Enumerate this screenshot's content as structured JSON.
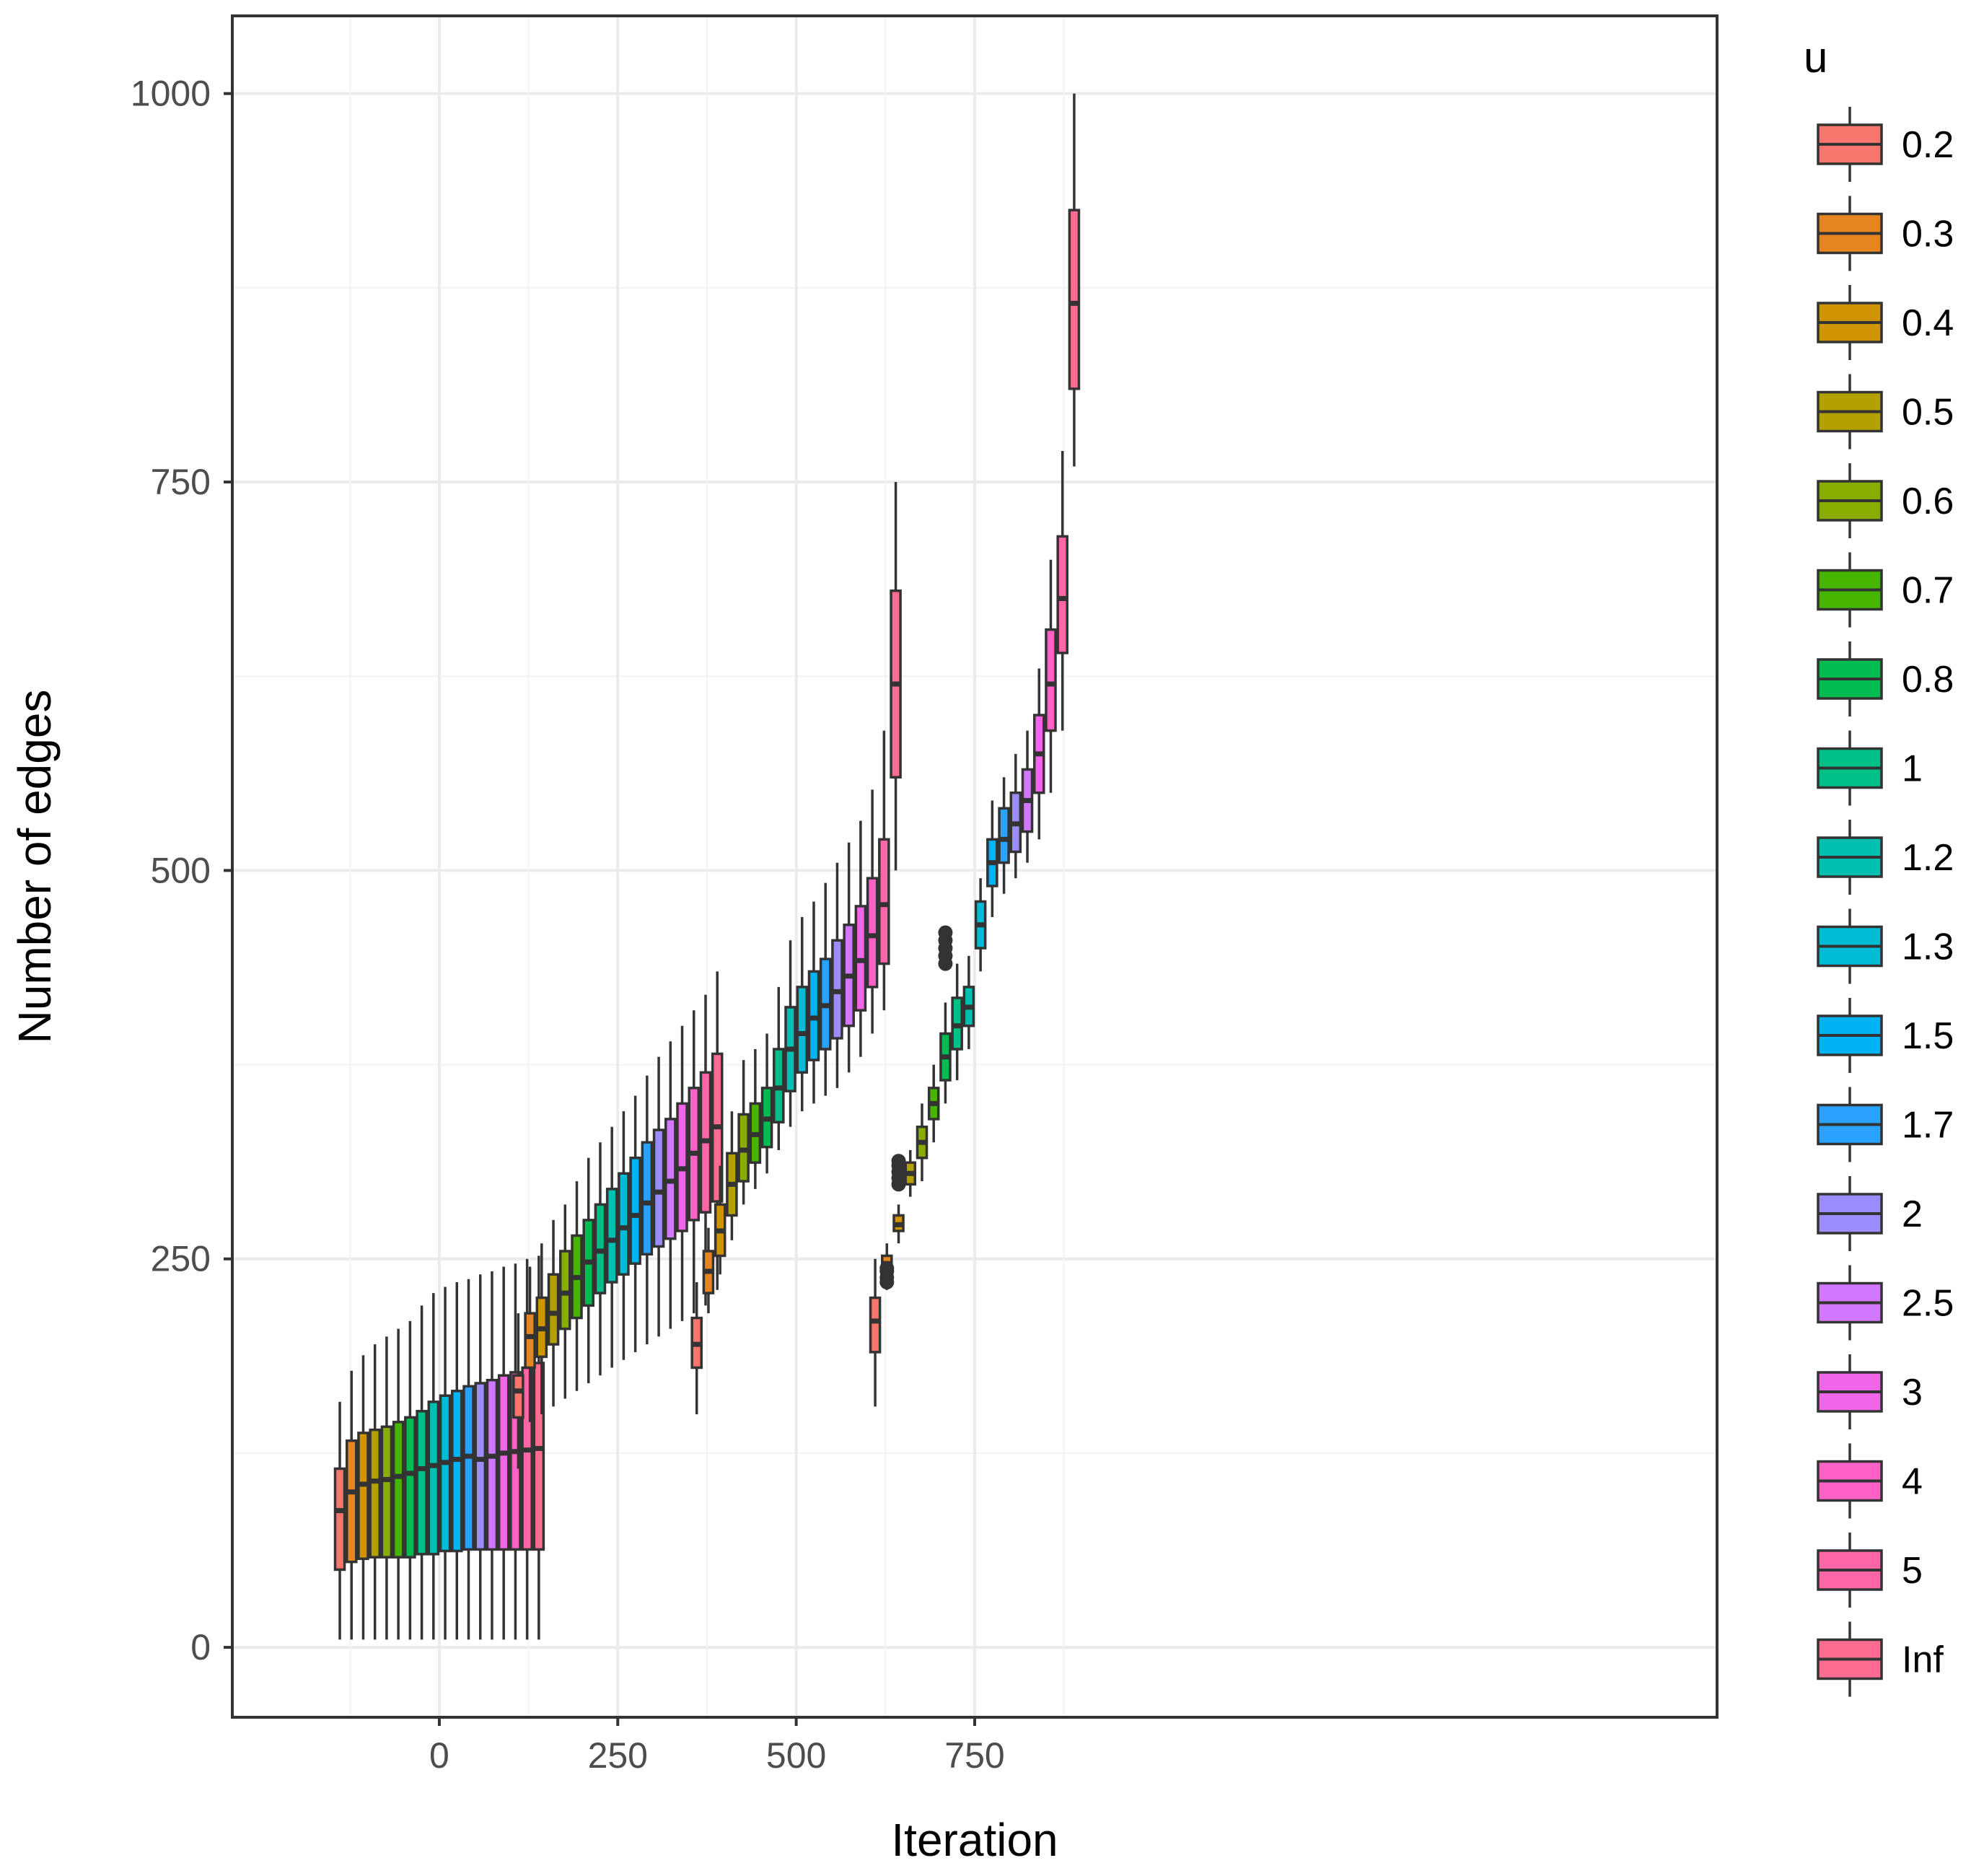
{
  "chart_data": {
    "type": "boxplot",
    "xlabel": "Iteration",
    "ylabel": "Number of edges",
    "xlim": [
      -290,
      1790
    ],
    "ylim": [
      -45,
      1050
    ],
    "x_ticks": [
      0,
      250,
      500,
      750
    ],
    "y_ticks": [
      0,
      250,
      500,
      750,
      1000
    ],
    "grid": true,
    "legend": {
      "title": "u",
      "position": "right",
      "entries": [
        "0.2",
        "0.3",
        "0.4",
        "0.5",
        "0.6",
        "0.7",
        "0.8",
        "1",
        "1.2",
        "1.3",
        "1.5",
        "1.7",
        "2",
        "2.5",
        "3",
        "4",
        "5",
        "Inf"
      ],
      "colors": [
        "#F8766D",
        "#E7851E",
        "#D09400",
        "#B2A100",
        "#89AC00",
        "#45B500",
        "#00BC51",
        "#00C087",
        "#00C0B2",
        "#00BCD6",
        "#00B3F2",
        "#29A3FF",
        "#9C8DFF",
        "#D277FF",
        "#F166E8",
        "#FF61C7",
        "#FF66A8",
        "#FF6C91"
      ]
    },
    "groups": [
      {
        "iteration": 0,
        "boxes": [
          {
            "u": "0.2",
            "whisker_low": 5,
            "q1": 50,
            "median": 88,
            "q3": 115,
            "whisker_high": 158
          },
          {
            "u": "0.3",
            "whisker_low": 5,
            "q1": 55,
            "median": 100,
            "q3": 133,
            "whisker_high": 178
          },
          {
            "u": "0.4",
            "whisker_low": 5,
            "q1": 57,
            "median": 105,
            "q3": 138,
            "whisker_high": 188
          },
          {
            "u": "0.5",
            "whisker_low": 5,
            "q1": 58,
            "median": 107,
            "q3": 140,
            "whisker_high": 195
          },
          {
            "u": "0.6",
            "whisker_low": 5,
            "q1": 58,
            "median": 108,
            "q3": 142,
            "whisker_high": 200
          },
          {
            "u": "0.7",
            "whisker_low": 5,
            "q1": 58,
            "median": 110,
            "q3": 145,
            "whisker_high": 205
          },
          {
            "u": "0.8",
            "whisker_low": 5,
            "q1": 58,
            "median": 112,
            "q3": 148,
            "whisker_high": 210
          },
          {
            "u": "1",
            "whisker_low": 5,
            "q1": 60,
            "median": 115,
            "q3": 152,
            "whisker_high": 220
          },
          {
            "u": "1.2",
            "whisker_low": 5,
            "q1": 60,
            "median": 117,
            "q3": 158,
            "whisker_high": 228
          },
          {
            "u": "1.3",
            "whisker_low": 5,
            "q1": 62,
            "median": 119,
            "q3": 162,
            "whisker_high": 232
          },
          {
            "u": "1.5",
            "whisker_low": 5,
            "q1": 62,
            "median": 121,
            "q3": 165,
            "whisker_high": 235
          },
          {
            "u": "1.7",
            "whisker_low": 5,
            "q1": 63,
            "median": 123,
            "q3": 168,
            "whisker_high": 237
          },
          {
            "u": "2",
            "whisker_low": 5,
            "q1": 63,
            "median": 121,
            "q3": 170,
            "whisker_high": 240
          },
          {
            "u": "2.5",
            "whisker_low": 5,
            "q1": 63,
            "median": 123,
            "q3": 172,
            "whisker_high": 242
          },
          {
            "u": "3",
            "whisker_low": 5,
            "q1": 63,
            "median": 125,
            "q3": 175,
            "whisker_high": 245
          },
          {
            "u": "4",
            "whisker_low": 5,
            "q1": 63,
            "median": 126,
            "q3": 177,
            "whisker_high": 247
          },
          {
            "u": "5",
            "whisker_low": 5,
            "q1": 63,
            "median": 127,
            "q3": 180,
            "whisker_high": 250
          },
          {
            "u": "Inf",
            "whisker_low": 5,
            "q1": 63,
            "median": 128,
            "q3": 183,
            "whisker_high": 252
          }
        ]
      },
      {
        "iteration": 250,
        "boxes": [
          {
            "u": "0.2",
            "whisker_low": 115,
            "q1": 148,
            "median": 165,
            "q3": 175,
            "whisker_high": 215
          },
          {
            "u": "0.3",
            "whisker_low": 145,
            "q1": 180,
            "median": 200,
            "q3": 215,
            "whisker_high": 245
          },
          {
            "u": "0.4",
            "whisker_low": 150,
            "q1": 187,
            "median": 205,
            "q3": 225,
            "whisker_high": 260
          },
          {
            "u": "0.5",
            "whisker_low": 155,
            "q1": 195,
            "median": 215,
            "q3": 240,
            "whisker_high": 275
          },
          {
            "u": "0.6",
            "whisker_low": 160,
            "q1": 205,
            "median": 228,
            "q3": 255,
            "whisker_high": 285
          },
          {
            "u": "0.7",
            "whisker_low": 165,
            "q1": 212,
            "median": 238,
            "q3": 265,
            "whisker_high": 300
          },
          {
            "u": "0.8",
            "whisker_low": 170,
            "q1": 220,
            "median": 248,
            "q3": 275,
            "whisker_high": 315
          },
          {
            "u": "1",
            "whisker_low": 175,
            "q1": 228,
            "median": 255,
            "q3": 285,
            "whisker_high": 325
          },
          {
            "u": "1.2",
            "whisker_low": 180,
            "q1": 235,
            "median": 262,
            "q3": 295,
            "whisker_high": 335
          },
          {
            "u": "1.3",
            "whisker_low": 185,
            "q1": 240,
            "median": 270,
            "q3": 305,
            "whisker_high": 345
          },
          {
            "u": "1.5",
            "whisker_low": 190,
            "q1": 247,
            "median": 278,
            "q3": 315,
            "whisker_high": 355
          },
          {
            "u": "1.7",
            "whisker_low": 195,
            "q1": 253,
            "median": 286,
            "q3": 325,
            "whisker_high": 368
          },
          {
            "u": "2",
            "whisker_low": 200,
            "q1": 258,
            "median": 293,
            "q3": 333,
            "whisker_high": 380
          },
          {
            "u": "2.5",
            "whisker_low": 205,
            "q1": 263,
            "median": 300,
            "q3": 340,
            "whisker_high": 390
          },
          {
            "u": "3",
            "whisker_low": 210,
            "q1": 268,
            "median": 308,
            "q3": 350,
            "whisker_high": 400
          },
          {
            "u": "4",
            "whisker_low": 215,
            "q1": 275,
            "median": 318,
            "q3": 360,
            "whisker_high": 410
          },
          {
            "u": "5",
            "whisker_low": 220,
            "q1": 280,
            "median": 326,
            "q3": 370,
            "whisker_high": 420
          },
          {
            "u": "Inf",
            "whisker_low": 230,
            "q1": 287,
            "median": 335,
            "q3": 382,
            "whisker_high": 435
          }
        ]
      },
      {
        "iteration": 500,
        "boxes": [
          {
            "u": "0.2",
            "whisker_low": 150,
            "q1": 180,
            "median": 195,
            "q3": 212,
            "whisker_high": 235
          },
          {
            "u": "0.3",
            "whisker_low": 215,
            "q1": 228,
            "median": 242,
            "q3": 255,
            "whisker_high": 270
          },
          {
            "u": "0.4",
            "whisker_low": 240,
            "q1": 252,
            "median": 268,
            "q3": 285,
            "whisker_high": 310
          },
          {
            "u": "0.5",
            "whisker_low": 262,
            "q1": 278,
            "median": 298,
            "q3": 318,
            "whisker_high": 345
          },
          {
            "u": "0.6",
            "whisker_low": 285,
            "q1": 300,
            "median": 320,
            "q3": 343,
            "whisker_high": 378
          },
          {
            "u": "0.7",
            "whisker_low": 295,
            "q1": 312,
            "median": 330,
            "q3": 350,
            "whisker_high": 385
          },
          {
            "u": "0.8",
            "whisker_low": 305,
            "q1": 322,
            "median": 340,
            "q3": 360,
            "whisker_high": 395
          },
          {
            "u": "1",
            "whisker_low": 320,
            "q1": 338,
            "median": 360,
            "q3": 385,
            "whisker_high": 425
          },
          {
            "u": "1.2",
            "whisker_low": 335,
            "q1": 358,
            "median": 385,
            "q3": 412,
            "whisker_high": 455
          },
          {
            "u": "1.3",
            "whisker_low": 345,
            "q1": 370,
            "median": 395,
            "q3": 425,
            "whisker_high": 470
          },
          {
            "u": "1.5",
            "whisker_low": 350,
            "q1": 378,
            "median": 405,
            "q3": 435,
            "whisker_high": 480
          },
          {
            "u": "1.7",
            "whisker_low": 355,
            "q1": 385,
            "median": 413,
            "q3": 443,
            "whisker_high": 492
          },
          {
            "u": "2",
            "whisker_low": 360,
            "q1": 392,
            "median": 422,
            "q3": 455,
            "whisker_high": 505
          },
          {
            "u": "2.5",
            "whisker_low": 370,
            "q1": 400,
            "median": 432,
            "q3": 465,
            "whisker_high": 518
          },
          {
            "u": "3",
            "whisker_low": 380,
            "q1": 410,
            "median": 442,
            "q3": 477,
            "whisker_high": 532
          },
          {
            "u": "4",
            "whisker_low": 395,
            "q1": 425,
            "median": 458,
            "q3": 495,
            "whisker_high": 552
          },
          {
            "u": "5",
            "whisker_low": 410,
            "q1": 440,
            "median": 478,
            "q3": 520,
            "whisker_high": 590
          },
          {
            "u": "Inf",
            "whisker_low": 500,
            "q1": 560,
            "median": 620,
            "q3": 680,
            "whisker_high": 750
          }
        ]
      },
      {
        "iteration": 750,
        "boxes": [
          {
            "u": "0.2",
            "whisker_low": 155,
            "q1": 190,
            "median": 210,
            "q3": 225,
            "whisker_high": 250
          },
          {
            "u": "0.3",
            "whisker_low": 230,
            "q1": 240,
            "median": 247,
            "q3": 252,
            "whisker_high": 260
          },
          {
            "u": "0.4",
            "whisker_low": 260,
            "q1": 268,
            "median": 272,
            "q3": 278,
            "whisker_high": 285
          },
          {
            "u": "0.5",
            "whisker_low": 290,
            "q1": 298,
            "median": 305,
            "q3": 312,
            "whisker_high": 320
          },
          {
            "u": "0.6",
            "whisker_low": 300,
            "q1": 315,
            "median": 325,
            "q3": 335,
            "whisker_high": 350
          },
          {
            "u": "0.7",
            "whisker_low": 325,
            "q1": 340,
            "median": 350,
            "q3": 360,
            "whisker_high": 375
          },
          {
            "u": "0.8",
            "whisker_low": 350,
            "q1": 365,
            "median": 380,
            "q3": 395,
            "whisker_high": 415
          },
          {
            "u": "1",
            "whisker_low": 365,
            "q1": 385,
            "median": 400,
            "q3": 418,
            "whisker_high": 440
          },
          {
            "u": "1.2",
            "whisker_low": 385,
            "q1": 400,
            "median": 412,
            "q3": 425,
            "whisker_high": 445
          },
          {
            "u": "1.3",
            "whisker_low": 435,
            "q1": 450,
            "median": 465,
            "q3": 480,
            "whisker_high": 495
          },
          {
            "u": "1.5",
            "whisker_low": 470,
            "q1": 490,
            "median": 505,
            "q3": 520,
            "whisker_high": 545
          },
          {
            "u": "1.7",
            "whisker_low": 485,
            "q1": 505,
            "median": 520,
            "q3": 540,
            "whisker_high": 560
          },
          {
            "u": "2",
            "whisker_low": 495,
            "q1": 512,
            "median": 530,
            "q3": 550,
            "whisker_high": 575
          },
          {
            "u": "2.5",
            "whisker_low": 505,
            "q1": 525,
            "median": 545,
            "q3": 565,
            "whisker_high": 590
          },
          {
            "u": "3",
            "whisker_low": 520,
            "q1": 550,
            "median": 575,
            "q3": 600,
            "whisker_high": 630
          },
          {
            "u": "4",
            "whisker_low": 550,
            "q1": 590,
            "median": 620,
            "q3": 655,
            "whisker_high": 700
          },
          {
            "u": "5",
            "whisker_low": 590,
            "q1": 640,
            "median": 675,
            "q3": 715,
            "whisker_high": 770
          },
          {
            "u": "Inf",
            "whisker_low": 760,
            "q1": 810,
            "median": 865,
            "q3": 925,
            "whisker_high": 1000
          }
        ]
      }
    ],
    "outliers": [
      {
        "iteration": 750,
        "u": "0.3",
        "values": [
          235,
          238,
          242,
          244
        ]
      },
      {
        "iteration": 750,
        "u": "0.4",
        "values": [
          298,
          302,
          306,
          310,
          313
        ]
      },
      {
        "iteration": 750,
        "u": "0.8",
        "values": [
          440,
          445,
          450,
          455,
          460
        ]
      }
    ]
  }
}
